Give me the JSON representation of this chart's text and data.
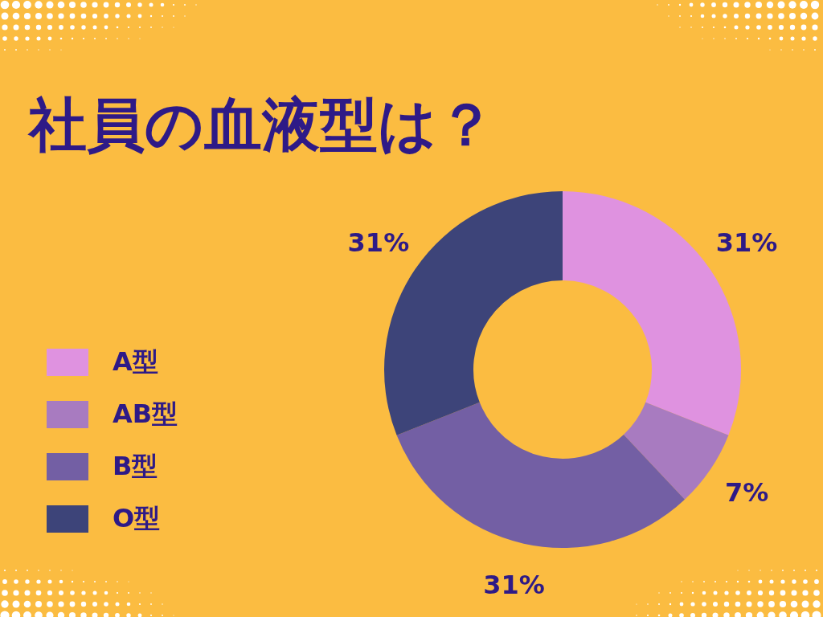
{
  "chart_data": {
    "type": "donut",
    "title": "社員の血液型は？",
    "categories": [
      "A型",
      "AB型",
      "B型",
      "O型"
    ],
    "values": [
      31,
      7,
      31,
      31
    ],
    "value_labels": [
      "31%",
      "7%",
      "31%",
      "31%"
    ],
    "colors": [
      "#df92e0",
      "#a87bc0",
      "#735fa4",
      "#3d4479"
    ],
    "legend": "left"
  }
}
